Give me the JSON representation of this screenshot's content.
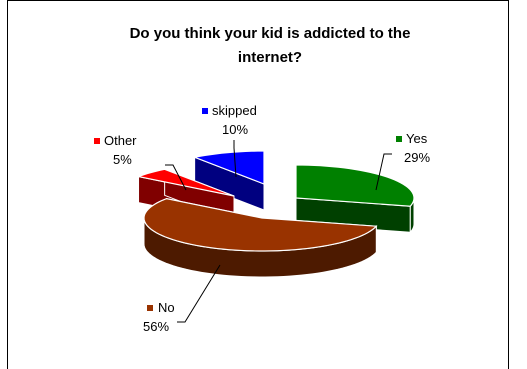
{
  "chart_data": {
    "type": "pie",
    "title_lines": [
      "Do you think your kid is addicted to the",
      "internet?"
    ],
    "slices": [
      {
        "name": "Yes",
        "pct_label": "29%",
        "value": 29,
        "color": "#008000",
        "dark": "#004000"
      },
      {
        "name": "No",
        "pct_label": "56%",
        "value": 56,
        "color": "#993300",
        "dark": "#4d1a00"
      },
      {
        "name": "Other",
        "pct_label": "5%",
        "value": 5,
        "color": "#ff0000",
        "dark": "#800000"
      },
      {
        "name": "skipped",
        "pct_label": "10%",
        "value": 10,
        "color": "#0000ff",
        "dark": "#000080"
      }
    ],
    "legend": "none",
    "exploded": true,
    "three_d": true
  }
}
